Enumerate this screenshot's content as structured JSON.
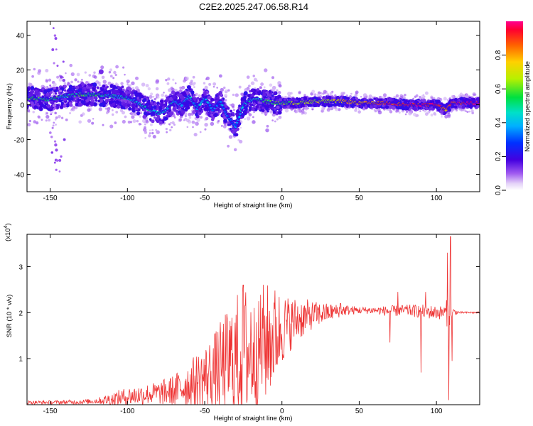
{
  "figure": {
    "title": "C2E2.2025.247.06.58.R14"
  },
  "chart_data": [
    {
      "type": "heatmap",
      "name": "spectrogram",
      "xlabel": "Height of straight line (km)",
      "ylabel": "Frequency (Hz)",
      "xlim": [
        -165,
        128
      ],
      "ylim": [
        -50,
        48
      ],
      "xticks": [
        -150,
        -100,
        -50,
        0,
        50,
        100
      ],
      "yticks": [
        -40,
        -20,
        0,
        20,
        40
      ],
      "colorbar": {
        "label": "Normalized spectral amplitude",
        "range": [
          0,
          1
        ],
        "ticks": [
          "0.0",
          "0.2",
          "0.4",
          "0.6",
          "0.8"
        ],
        "tick_values": [
          0.0,
          0.2,
          0.4,
          0.6,
          0.8
        ]
      },
      "ridge": {
        "x": [
          -165,
          -150,
          -140,
          -130,
          -120,
          -110,
          -100,
          -95,
          -90,
          -85,
          -80,
          -75,
          -70,
          -65,
          -60,
          -55,
          -50,
          -45,
          -40,
          -35,
          -30,
          -25,
          -20,
          -15,
          -10,
          -5,
          0,
          10,
          20,
          30,
          40,
          50,
          60,
          70,
          80,
          90,
          100,
          106,
          110,
          128
        ],
        "freq": [
          4,
          3,
          5,
          6,
          6,
          5,
          4,
          2,
          -1,
          -3,
          -5,
          -3,
          2,
          0,
          5,
          -2,
          4,
          -3,
          2,
          -7,
          -13,
          0,
          3,
          3,
          2,
          1,
          1,
          1,
          2,
          2,
          2,
          1,
          1,
          1,
          0,
          0,
          0,
          -3,
          1,
          1
        ],
        "amp": [
          0.55,
          0.55,
          0.5,
          0.55,
          0.5,
          0.45,
          0.45,
          0.45,
          0.5,
          0.45,
          0.45,
          0.4,
          0.45,
          0.35,
          0.4,
          0.35,
          0.4,
          0.35,
          0.35,
          0.3,
          0.35,
          0.4,
          0.45,
          0.5,
          0.55,
          0.6,
          0.6,
          0.65,
          0.7,
          0.7,
          0.75,
          0.8,
          0.85,
          0.9,
          0.92,
          0.95,
          0.95,
          0.8,
          0.9,
          1.0
        ]
      }
    },
    {
      "type": "line",
      "name": "snr",
      "xlabel": "Height of straight line (km)",
      "ylabel": "SNR (10 * v/v)",
      "yscale_label": "(x10",
      "yscale_exp": "4",
      "multiplier": 10000,
      "xlim": [
        -165,
        128
      ],
      "ylim": [
        0,
        3.7
      ],
      "xticks": [
        -150,
        -100,
        -50,
        0,
        50,
        100
      ],
      "yticks": [
        1,
        2,
        3
      ],
      "color": "#ee3333",
      "x": [
        -165,
        -150,
        -130,
        -120,
        -110,
        -100,
        -90,
        -80,
        -70,
        -60,
        -50,
        -45,
        -40,
        -35,
        -30,
        -25,
        -20,
        -15,
        -10,
        -5,
        0,
        5,
        10,
        20,
        30,
        40,
        50,
        60,
        70,
        80,
        90,
        100,
        105,
        108,
        110,
        115,
        128
      ],
      "y": [
        0.05,
        0.05,
        0.06,
        0.08,
        0.12,
        0.18,
        0.22,
        0.25,
        0.3,
        0.45,
        0.6,
        0.7,
        0.8,
        0.9,
        1.0,
        1.1,
        1.2,
        1.3,
        1.35,
        1.5,
        1.65,
        1.75,
        1.85,
        1.95,
        2.0,
        2.05,
        2.05,
        2.05,
        2.03,
        2.05,
        2.03,
        2.0,
        2.0,
        2.0,
        2.02,
        2.0,
        2.0
      ],
      "noise": [
        0.04,
        0.04,
        0.05,
        0.06,
        0.15,
        0.2,
        0.22,
        0.25,
        0.35,
        0.5,
        0.7,
        0.8,
        1.0,
        1.2,
        1.4,
        1.5,
        1.5,
        1.4,
        1.3,
        1.1,
        0.8,
        0.6,
        0.5,
        0.3,
        0.2,
        0.12,
        0.08,
        0.08,
        0.12,
        0.12,
        0.15,
        0.15,
        0.15,
        0.4,
        0.1,
        0.02,
        0.02
      ],
      "spikes": [
        {
          "x": -25,
          "y": 2.6
        },
        {
          "x": -18,
          "y": 2.1
        },
        {
          "x": -15,
          "y": 2.25
        },
        {
          "x": 38,
          "y": 2.2
        },
        {
          "x": 70,
          "y": 1.35
        },
        {
          "x": 75,
          "y": 2.45
        },
        {
          "x": 90,
          "y": 0.7
        },
        {
          "x": 93,
          "y": 2.45
        },
        {
          "x": 107,
          "y": 3.3
        },
        {
          "x": 108,
          "y": 0.1
        },
        {
          "x": 109,
          "y": 3.65
        },
        {
          "x": 110,
          "y": 0.95
        }
      ]
    }
  ]
}
